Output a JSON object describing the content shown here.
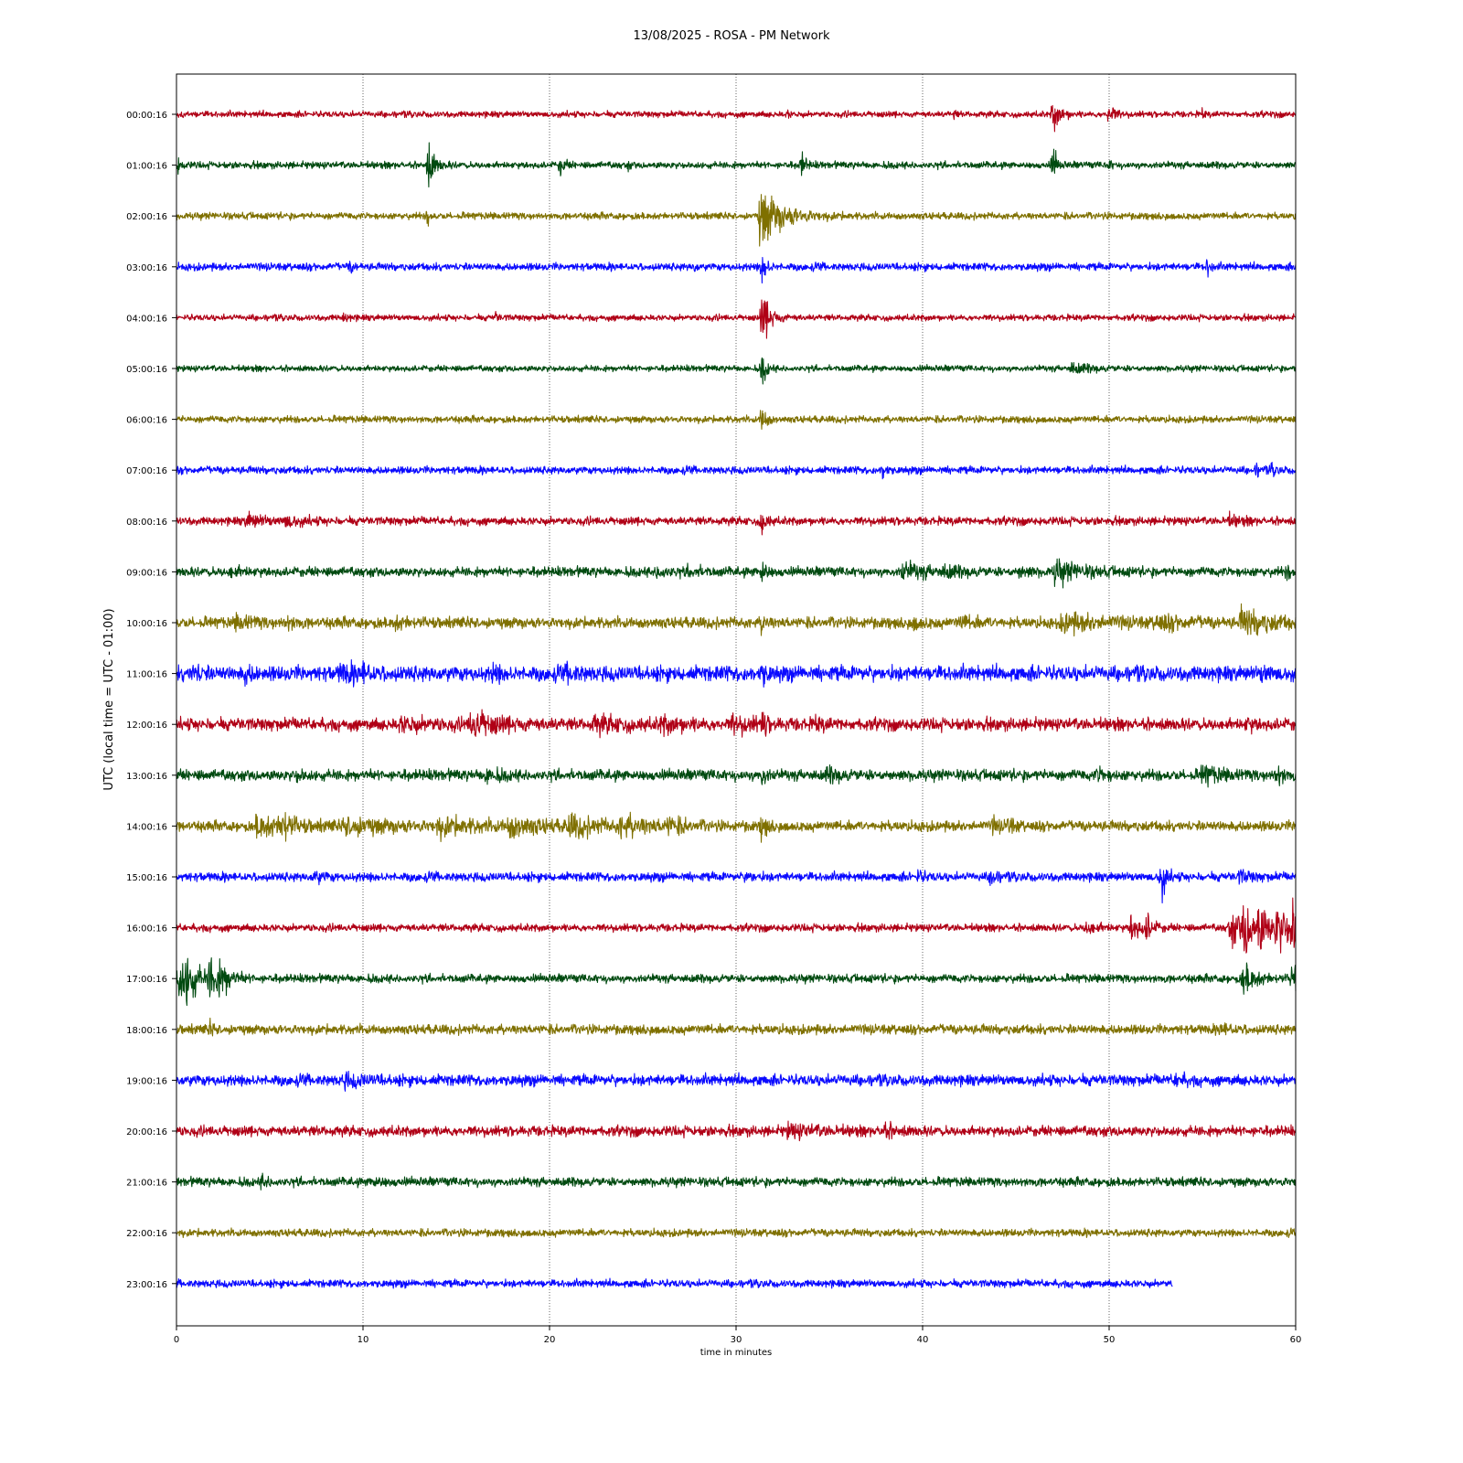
{
  "chart_data": {
    "type": "line",
    "title": "13/08/2025 - ROSA - PM Network",
    "xlabel": "time in minutes",
    "ylabel": "UTC (local time = UTC - 01:00)",
    "xlim": [
      0,
      60
    ],
    "x_ticks": [
      "0",
      "10",
      "20",
      "30",
      "40",
      "50",
      "60"
    ],
    "x_tick_values": [
      0,
      10,
      20,
      30,
      40,
      50,
      60
    ],
    "grid": "vertical dotted at each x tick",
    "colors": [
      "#b00016",
      "#004a10",
      "#7f7000",
      "#0a0aff"
    ],
    "rows": [
      {
        "label": "00:00:16",
        "color": "#b00016",
        "noise": 0.9,
        "events": [
          {
            "x": 47.0,
            "amp": 5,
            "decay": 0.35
          },
          {
            "x": 50.0,
            "amp": 3.5,
            "decay": 0.25
          },
          {
            "x": 55.0,
            "amp": 1.2,
            "decay": 0.1
          },
          {
            "x": 41.7,
            "amp": 0.9,
            "decay": 0.1
          },
          {
            "x": 32.8,
            "amp": 1.0,
            "decay": 0.1
          }
        ]
      },
      {
        "label": "01:00:16",
        "color": "#004a10",
        "noise": 1.0,
        "events": [
          {
            "x": 0.1,
            "amp": 1.8,
            "decay": 0.15
          },
          {
            "x": 13.5,
            "amp": 7,
            "decay": 0.3
          },
          {
            "x": 20.6,
            "amp": 2.5,
            "decay": 0.2
          },
          {
            "x": 24.2,
            "amp": 0.9,
            "decay": 0.1
          },
          {
            "x": 33.5,
            "amp": 3.5,
            "decay": 0.2
          },
          {
            "x": 47.0,
            "amp": 6,
            "decay": 0.15
          },
          {
            "x": 50.0,
            "amp": 1.5,
            "decay": 0.1
          }
        ]
      },
      {
        "label": "02:00:16",
        "color": "#7f7000",
        "noise": 1.0,
        "events": [
          {
            "x": 13.5,
            "amp": 2.5,
            "decay": 0.1
          },
          {
            "x": 31.3,
            "amp": 9,
            "decay": 1.1
          }
        ]
      },
      {
        "label": "03:00:16",
        "color": "#0a0aff",
        "noise": 1.1,
        "events": [
          {
            "x": 9.3,
            "amp": 1.1,
            "decay": 0.2
          },
          {
            "x": 27.8,
            "amp": 1.1,
            "decay": 0.1
          },
          {
            "x": 31.4,
            "amp": 5,
            "decay": 0.2
          },
          {
            "x": 55.3,
            "amp": 2.5,
            "decay": 0.15
          }
        ]
      },
      {
        "label": "04:00:16",
        "color": "#b00016",
        "noise": 0.9,
        "events": [
          {
            "x": 9.0,
            "amp": 1.2,
            "decay": 0.2
          },
          {
            "x": 17.1,
            "amp": 1.0,
            "decay": 0.2
          },
          {
            "x": 31.4,
            "amp": 8,
            "decay": 0.4
          }
        ]
      },
      {
        "label": "05:00:16",
        "color": "#004a10",
        "noise": 0.9,
        "events": [
          {
            "x": 31.4,
            "amp": 5,
            "decay": 0.2
          },
          {
            "x": 48.0,
            "amp": 1.4,
            "decay": 0.8
          }
        ]
      },
      {
        "label": "06:00:16",
        "color": "#7f7000",
        "noise": 1.0,
        "events": [
          {
            "x": 31.4,
            "amp": 5,
            "decay": 0.2
          }
        ]
      },
      {
        "label": "07:00:16",
        "color": "#0a0aff",
        "noise": 1.1,
        "events": [
          {
            "x": 37.9,
            "amp": 3,
            "decay": 0.15
          },
          {
            "x": 57.9,
            "amp": 1.5,
            "decay": 0.15
          },
          {
            "x": 58.7,
            "amp": 1.2,
            "decay": 0.2
          }
        ]
      },
      {
        "label": "08:00:16",
        "color": "#b00016",
        "noise": 1.2,
        "events": [
          {
            "x": 3.8,
            "amp": 1.8,
            "decay": 0.8
          },
          {
            "x": 5.8,
            "amp": 1.5,
            "decay": 0.8
          },
          {
            "x": 31.4,
            "amp": 4,
            "decay": 0.2
          },
          {
            "x": 56.4,
            "amp": 1.3,
            "decay": 0.6
          }
        ]
      },
      {
        "label": "09:00:16",
        "color": "#004a10",
        "noise": 1.4,
        "events": [
          {
            "x": 2.9,
            "amp": 1.3,
            "decay": 0.5
          },
          {
            "x": 25.8,
            "amp": 1.5,
            "decay": 0.5
          },
          {
            "x": 27.5,
            "amp": 1.3,
            "decay": 0.5
          },
          {
            "x": 31.4,
            "amp": 4,
            "decay": 0.2
          },
          {
            "x": 38.9,
            "amp": 2.2,
            "decay": 1.2
          },
          {
            "x": 41.2,
            "amp": 1.3,
            "decay": 0.6
          },
          {
            "x": 45.2,
            "amp": 1.3,
            "decay": 0.5
          },
          {
            "x": 47.1,
            "amp": 3,
            "decay": 1.2
          },
          {
            "x": 59.5,
            "amp": 1.2,
            "decay": 0.5
          }
        ]
      },
      {
        "label": "10:00:16",
        "color": "#7f7000",
        "noise": 1.6,
        "events": [
          {
            "x": 3.2,
            "amp": 1.5,
            "decay": 0.8
          },
          {
            "x": 5.9,
            "amp": 1.6,
            "decay": 0.4
          },
          {
            "x": 11.7,
            "amp": 1.4,
            "decay": 0.6
          },
          {
            "x": 31.4,
            "amp": 3,
            "decay": 0.2
          },
          {
            "x": 39.5,
            "amp": 1.3,
            "decay": 0.5
          },
          {
            "x": 42.0,
            "amp": 1.3,
            "decay": 0.8
          },
          {
            "x": 47.5,
            "amp": 2.3,
            "decay": 2.0
          },
          {
            "x": 52.5,
            "amp": 1.5,
            "decay": 1.5
          },
          {
            "x": 57.1,
            "amp": 3.5,
            "decay": 1.5
          }
        ]
      },
      {
        "label": "11:00:16",
        "color": "#0a0aff",
        "noise": 2.2,
        "events": [
          {
            "x": 0.9,
            "amp": 2.2,
            "decay": 0.3
          },
          {
            "x": 3.7,
            "amp": 2.0,
            "decay": 0.3
          },
          {
            "x": 8.8,
            "amp": 1.8,
            "decay": 1.0
          },
          {
            "x": 10.0,
            "amp": 1.7,
            "decay": 0.3
          },
          {
            "x": 17.0,
            "amp": 2.0,
            "decay": 0.3
          },
          {
            "x": 21.0,
            "amp": 2.0,
            "decay": 0.4
          },
          {
            "x": 31.4,
            "amp": 3,
            "decay": 0.2
          },
          {
            "x": 58.2,
            "amp": 1.5,
            "decay": 0.5
          }
        ]
      },
      {
        "label": "12:00:16",
        "color": "#b00016",
        "noise": 1.8,
        "events": [
          {
            "x": 12.0,
            "amp": 1.6,
            "decay": 1.5
          },
          {
            "x": 15.8,
            "amp": 3.6,
            "decay": 1.3
          },
          {
            "x": 22.4,
            "amp": 1.8,
            "decay": 1.5
          },
          {
            "x": 26.0,
            "amp": 1.7,
            "decay": 1.2
          },
          {
            "x": 29.8,
            "amp": 1.8,
            "decay": 1.2
          },
          {
            "x": 31.4,
            "amp": 3,
            "decay": 0.2
          },
          {
            "x": 34.2,
            "amp": 1.4,
            "decay": 0.4
          },
          {
            "x": 57.4,
            "amp": 1.3,
            "decay": 0.4
          }
        ]
      },
      {
        "label": "13:00:16",
        "color": "#004a10",
        "noise": 1.6,
        "events": [
          {
            "x": 6.5,
            "amp": 1.4,
            "decay": 0.3
          },
          {
            "x": 16.6,
            "amp": 1.6,
            "decay": 0.6
          },
          {
            "x": 31.4,
            "amp": 3,
            "decay": 0.2
          },
          {
            "x": 34.9,
            "amp": 1.5,
            "decay": 0.6
          },
          {
            "x": 49.4,
            "amp": 1.5,
            "decay": 0.4
          },
          {
            "x": 55.0,
            "amp": 2.4,
            "decay": 0.8
          },
          {
            "x": 59.0,
            "amp": 3,
            "decay": 0.3
          }
        ]
      },
      {
        "label": "14:00:16",
        "color": "#7f7000",
        "noise": 1.5,
        "events": [
          {
            "x": 4.3,
            "amp": 2.8,
            "decay": 1.8
          },
          {
            "x": 5.7,
            "amp": 4.5,
            "decay": 0.3
          },
          {
            "x": 9.0,
            "amp": 2.0,
            "decay": 2.5
          },
          {
            "x": 14.0,
            "amp": 2.0,
            "decay": 2.0
          },
          {
            "x": 17.8,
            "amp": 2.6,
            "decay": 1.5
          },
          {
            "x": 21.0,
            "amp": 2.6,
            "decay": 1.5
          },
          {
            "x": 23.8,
            "amp": 2.5,
            "decay": 1.5
          },
          {
            "x": 26.3,
            "amp": 1.8,
            "decay": 0.8
          },
          {
            "x": 31.4,
            "amp": 4,
            "decay": 0.2
          },
          {
            "x": 43.8,
            "amp": 1.8,
            "decay": 0.3
          },
          {
            "x": 44.6,
            "amp": 1.9,
            "decay": 0.3
          }
        ]
      },
      {
        "label": "15:00:16",
        "color": "#0a0aff",
        "noise": 1.3,
        "events": [
          {
            "x": 7.4,
            "amp": 1.6,
            "decay": 0.4
          },
          {
            "x": 30.6,
            "amp": 1.5,
            "decay": 0.3
          },
          {
            "x": 39.7,
            "amp": 1.6,
            "decay": 0.3
          },
          {
            "x": 43.7,
            "amp": 3.5,
            "decay": 0.2
          },
          {
            "x": 52.8,
            "amp": 7.5,
            "decay": 0.2
          },
          {
            "x": 57.0,
            "amp": 1.5,
            "decay": 0.5
          }
        ]
      },
      {
        "label": "16:00:16",
        "color": "#b00016",
        "noise": 1.1,
        "events": [
          {
            "x": 48.8,
            "amp": 2.0,
            "decay": 0.5
          },
          {
            "x": 51.2,
            "amp": 4.5,
            "decay": 0.4
          },
          {
            "x": 52.0,
            "amp": 4.0,
            "decay": 0.3
          },
          {
            "x": 56.5,
            "amp": 5.0,
            "decay": 0.8
          },
          {
            "x": 57.2,
            "amp": 7.5,
            "decay": 0.6
          },
          {
            "x": 58.0,
            "amp": 5.5,
            "decay": 0.8
          },
          {
            "x": 59.0,
            "amp": 5.0,
            "decay": 1.0
          },
          {
            "x": 59.8,
            "amp": 7.0,
            "decay": 0.6
          }
        ]
      },
      {
        "label": "17:00:16",
        "color": "#004a10",
        "noise": 1.2,
        "events": [
          {
            "x": 0.1,
            "amp": 7.0,
            "decay": 0.6
          },
          {
            "x": 0.5,
            "amp": 5.0,
            "decay": 0.6
          },
          {
            "x": 1.8,
            "amp": 6.5,
            "decay": 0.5
          },
          {
            "x": 2.4,
            "amp": 3.5,
            "decay": 0.5
          },
          {
            "x": 57.2,
            "amp": 4.5,
            "decay": 0.6
          },
          {
            "x": 59.8,
            "amp": 4.5,
            "decay": 0.5
          }
        ]
      },
      {
        "label": "18:00:16",
        "color": "#7f7000",
        "noise": 1.4,
        "events": [
          {
            "x": 1.8,
            "amp": 1.5,
            "decay": 0.2
          },
          {
            "x": 56.0,
            "amp": 1.2,
            "decay": 0.6
          }
        ]
      },
      {
        "label": "19:00:16",
        "color": "#0a0aff",
        "noise": 1.6,
        "events": [
          {
            "x": 9.0,
            "amp": 1.4,
            "decay": 1.0
          },
          {
            "x": 53.6,
            "amp": 1.6,
            "decay": 0.4
          }
        ]
      },
      {
        "label": "20:00:16",
        "color": "#b00016",
        "noise": 1.5,
        "events": [
          {
            "x": 32.8,
            "amp": 1.5,
            "decay": 1.5
          },
          {
            "x": 37.8,
            "amp": 1.8,
            "decay": 0.6
          }
        ]
      },
      {
        "label": "21:00:16",
        "color": "#004a10",
        "noise": 1.3,
        "events": [
          {
            "x": 4.6,
            "amp": 1.4,
            "decay": 0.3
          },
          {
            "x": 10.5,
            "amp": 1.2,
            "decay": 0.5
          }
        ]
      },
      {
        "label": "22:00:16",
        "color": "#7f7000",
        "noise": 1.1,
        "events": []
      },
      {
        "label": "23:00:16",
        "color": "#0a0aff",
        "noise": 1.1,
        "end_x": 53.4,
        "events": []
      }
    ]
  }
}
